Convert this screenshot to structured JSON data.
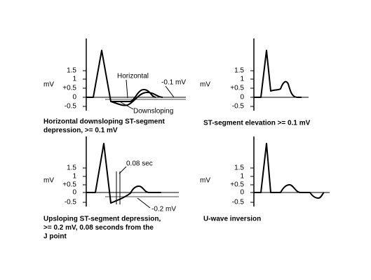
{
  "panels": [
    {
      "y_axis_label": "mV",
      "ticks": [
        "1.5",
        "1",
        "+0.5",
        "0",
        "-0.5"
      ],
      "annotations": [
        "Horizontal",
        "-0.1 mV",
        "Downsloping"
      ],
      "caption": [
        "Horizontal downsloping ST-segment",
        "depression, >= 0.1 mV"
      ]
    },
    {
      "y_axis_label": "mV",
      "ticks": [
        "1.5",
        "1",
        "+0.5",
        "0",
        "-0.5"
      ],
      "annotations": [],
      "caption": [
        "ST-segment elevation >= 0.1 mV"
      ]
    },
    {
      "y_axis_label": "mV",
      "ticks": [
        "1.5",
        "1",
        "+0.5",
        "0",
        "-0.5"
      ],
      "annotations": [
        "0.08 sec",
        "-0.2 mV"
      ],
      "caption": [
        "Upsloping ST-segment depression,",
        ">= 0.2 mV, 0.08 seconds from the",
        "J point"
      ]
    },
    {
      "y_axis_label": "mV",
      "ticks": [
        "1.5",
        "1",
        "+0.5",
        "0",
        "-0.5"
      ],
      "annotations": [],
      "caption": [
        "U-wave inversion"
      ]
    }
  ]
}
